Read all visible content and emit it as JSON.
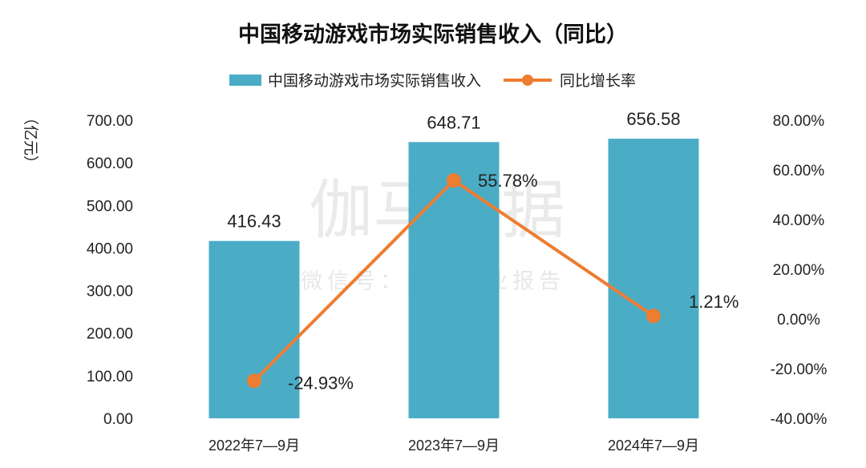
{
  "chart_data": {
    "type": "bar",
    "title": "中国移动游戏市场实际销售收入（同比）",
    "categories": [
      "2022年7—9月",
      "2023年7—9月",
      "2024年7—9月"
    ],
    "series": [
      {
        "name": "中国移动游戏市场实际销售收入",
        "type": "bar",
        "axis": "left",
        "color": "#4bacc6",
        "values": [
          416.43,
          648.71,
          656.58
        ],
        "labels": [
          "416.43",
          "648.71",
          "656.58"
        ]
      },
      {
        "name": "同比增长率",
        "type": "line",
        "axis": "right",
        "color": "#ed7d31",
        "values": [
          -24.93,
          55.78,
          1.21
        ],
        "labels": [
          "-24.93%",
          "55.78%",
          "1.21%"
        ]
      }
    ],
    "ylabel": "（亿元）",
    "ylim": [
      0,
      700
    ],
    "y_ticks": [
      "0.00",
      "100.00",
      "200.00",
      "300.00",
      "400.00",
      "500.00",
      "600.00",
      "700.00"
    ],
    "y2lim": [
      -40,
      80
    ],
    "y2_ticks": [
      "-40.00%",
      "-20.00%",
      "0.00%",
      "20.00%",
      "40.00%",
      "60.00%",
      "80.00%"
    ],
    "grid": false,
    "legend_position": "top-center",
    "watermark": {
      "main": "伽马数据",
      "sub": "微信号：游戏产业报告"
    }
  }
}
